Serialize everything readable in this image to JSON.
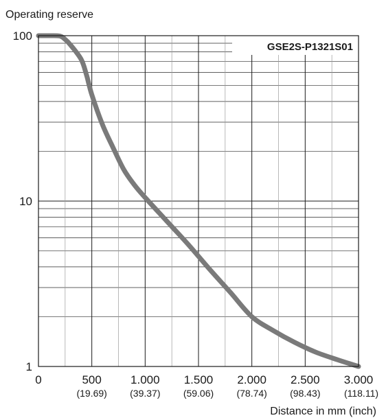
{
  "chart_data": {
    "type": "line",
    "ylabel": "Operating reserve",
    "xlabel": "Distance in mm (inch)",
    "yscale": "log",
    "ylim": [
      1,
      100
    ],
    "xlim": [
      0,
      3000
    ],
    "yticks": [
      {
        "value": 1,
        "label": "1"
      },
      {
        "value": 10,
        "label": "10"
      },
      {
        "value": 100,
        "label": "100"
      }
    ],
    "xticks": [
      {
        "value": 0,
        "label": "0",
        "sublabel": ""
      },
      {
        "value": 500,
        "label": "500",
        "sublabel": "(19.69)"
      },
      {
        "value": 1000,
        "label": "1.000",
        "sublabel": "(39.37)"
      },
      {
        "value": 1500,
        "label": "1.500",
        "sublabel": "(59.06)"
      },
      {
        "value": 2000,
        "label": "2.000",
        "sublabel": "(78.74)"
      },
      {
        "value": 2500,
        "label": "2.500",
        "sublabel": "(98.43)"
      },
      {
        "value": 3000,
        "label": "3.000",
        "sublabel": "(118.11)"
      }
    ],
    "grid": true,
    "series": [
      {
        "name": "GSE2S-P1321S01",
        "color": "#7a7a7a",
        "x": [
          0,
          100,
          200,
          250,
          300,
          400,
          450,
          500,
          600,
          700,
          800,
          900,
          1000,
          1200,
          1400,
          1600,
          1800,
          2000,
          2200,
          2400,
          2600,
          2800,
          3000
        ],
        "y": [
          100,
          100,
          99.5,
          95,
          88,
          72,
          58,
          44,
          29,
          21,
          15.5,
          12.5,
          10.5,
          7.6,
          5.5,
          3.9,
          2.8,
          2.0,
          1.65,
          1.4,
          1.22,
          1.1,
          1.0
        ]
      }
    ]
  }
}
